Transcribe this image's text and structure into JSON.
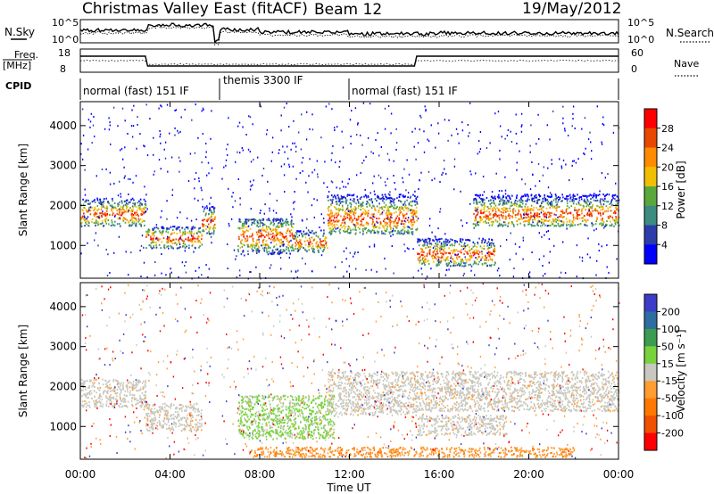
{
  "header": {
    "title": "Christmas Valley East (fitACF)",
    "beam": "Beam 12",
    "date": "19/May/2012"
  },
  "labels": {
    "nsky": "N.Sky",
    "nsearch": "N.Search",
    "freq_line1": "Freq.",
    "freq_line2": "[MHz]",
    "nave": "Nave",
    "cpid": "CPID",
    "noise_tick_top": "10^5",
    "noise_tick_bottom": "10^0",
    "freq_ticks": [
      "18",
      "8"
    ],
    "nave_ticks": [
      "60",
      "0"
    ],
    "cpid_segments": [
      "normal (fast) 151 IF",
      "themis 3300 IF",
      "normal (fast) 151 IF"
    ],
    "xlabel": "Time UT"
  },
  "chart_data": [
    {
      "type": "heatmap",
      "name": "power",
      "ylabel": "Slant Range [km]",
      "yticks": [
        1000,
        2000,
        3000,
        4000
      ],
      "ylim": [
        180,
        4600
      ],
      "xlim": [
        0,
        24
      ],
      "xticks": [
        "00:00",
        "04:00",
        "08:00",
        "12:00",
        "16:00",
        "20:00",
        "00:00"
      ],
      "colorbar": {
        "label": "Power [dB]",
        "ticks": [
          "28",
          "24",
          "20",
          "16",
          "12",
          "8",
          "4"
        ],
        "colors": [
          "#ff0000",
          "#e84800",
          "#ff8c00",
          "#f0c000",
          "#5aa83c",
          "#3c8c82",
          "#2c3ca8",
          "#0000ff"
        ]
      },
      "bands": [
        {
          "t0": 0.0,
          "t1": 2.9,
          "r0": 1500,
          "r1": 2200,
          "peak": 1800
        },
        {
          "t0": 2.9,
          "t1": 5.4,
          "r0": 950,
          "r1": 1500,
          "peak": 1200
        },
        {
          "t0": 5.4,
          "t1": 6.0,
          "r0": 1300,
          "r1": 2000,
          "peak": 1600
        },
        {
          "t0": 7.0,
          "t1": 9.5,
          "r0": 800,
          "r1": 1700,
          "peak": 1250
        },
        {
          "t0": 9.5,
          "t1": 11.0,
          "r0": 850,
          "r1": 1400,
          "peak": 1100
        },
        {
          "t0": 11.0,
          "t1": 15.0,
          "r0": 1300,
          "r1": 2300,
          "peak": 1700
        },
        {
          "t0": 15.0,
          "t1": 18.5,
          "r0": 500,
          "r1": 1200,
          "peak": 800
        },
        {
          "t0": 17.5,
          "t1": 24.0,
          "r0": 1500,
          "r1": 2300,
          "peak": 1800
        }
      ]
    },
    {
      "type": "heatmap",
      "name": "velocity",
      "ylabel": "Slant Range [km]",
      "yticks": [
        1000,
        2000,
        3000,
        4000
      ],
      "ylim": [
        180,
        4600
      ],
      "xlim": [
        0,
        24
      ],
      "xticks": [
        "00:00",
        "04:00",
        "08:00",
        "12:00",
        "16:00",
        "20:00",
        "00:00"
      ],
      "colorbar": {
        "label": "Velocity [m s⁻¹]",
        "ticks": [
          "200",
          "100",
          "50",
          "15",
          "-15",
          "-50",
          "-100",
          "-200"
        ],
        "colors": [
          "#3c3cc8",
          "#2c6ea0",
          "#3c9c50",
          "#78d23c",
          "#c8c8c0",
          "#ff9c32",
          "#ff7800",
          "#f05000",
          "#ff0000"
        ]
      },
      "bands": [
        {
          "t0": 0.0,
          "t1": 2.9,
          "r0": 1500,
          "r1": 2200,
          "vel": "ground"
        },
        {
          "t0": 2.9,
          "t1": 5.4,
          "r0": 900,
          "r1": 1600,
          "vel": "ground"
        },
        {
          "t0": 7.0,
          "t1": 11.3,
          "r0": 700,
          "r1": 1800,
          "vel": "green"
        },
        {
          "t0": 11.0,
          "t1": 15.0,
          "r0": 1300,
          "r1": 2400,
          "vel": "ground"
        },
        {
          "t0": 15.0,
          "t1": 24.0,
          "r0": 1400,
          "r1": 2400,
          "vel": "ground"
        },
        {
          "t0": 15.0,
          "t1": 19.0,
          "r0": 800,
          "r1": 1300,
          "vel": "ground"
        },
        {
          "t0": 7.5,
          "t1": 22.0,
          "r0": 250,
          "r1": 500,
          "vel": "orange"
        }
      ]
    }
  ]
}
